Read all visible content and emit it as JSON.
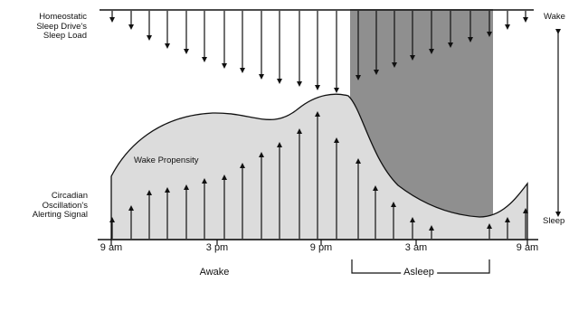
{
  "labels": {
    "homeostatic": "Homeostatic\nSleep Drive's\nSleep Load",
    "circadian": "Circadian\nOscillation's\nAlerting Signal",
    "wake_propensity": "Wake Propensity",
    "wake": "Wake",
    "sleep": "Sleep",
    "awake": "Awake",
    "asleep": "Asleep"
  },
  "time_ticks": [
    "9 am",
    "3 pm",
    "9 pm",
    "3 am",
    "9 am"
  ],
  "colors": {
    "curve_fill": "#dcdcdc",
    "sleep_shade": "#8f8f8f",
    "ink": "#111111"
  },
  "icons": {
    "arrow_down": "arrow-down-icon",
    "arrow_up": "arrow-up-icon",
    "double_arrow": "double-arrow-icon"
  }
}
